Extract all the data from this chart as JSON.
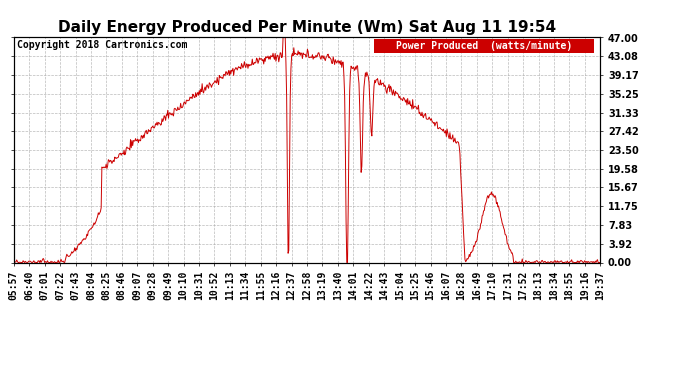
{
  "title": "Daily Energy Produced Per Minute (Wm) Sat Aug 11 19:54",
  "copyright": "Copyright 2018 Cartronics.com",
  "legend_label": "Power Produced  (watts/minute)",
  "legend_bg": "#cc0000",
  "legend_fg": "#ffffff",
  "line_color": "#cc0000",
  "bg_color": "#ffffff",
  "grid_color": "#aaaaaa",
  "ylim": [
    0,
    47.0
  ],
  "yticks": [
    0.0,
    3.92,
    7.83,
    11.75,
    15.67,
    19.58,
    23.5,
    27.42,
    31.33,
    35.25,
    39.17,
    43.08,
    47.0
  ],
  "title_fontsize": 11,
  "copyright_fontsize": 7,
  "tick_fontsize": 7
}
